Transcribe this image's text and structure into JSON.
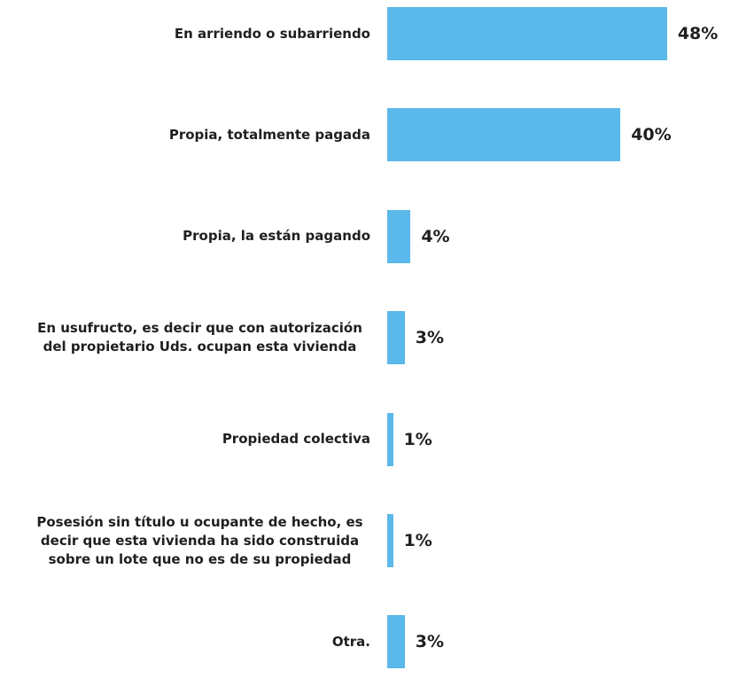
{
  "chart_data": {
    "type": "bar",
    "orientation": "horizontal",
    "categories": [
      "En arriendo o subarriendo",
      "Propia, totalmente pagada",
      "Propia, la están pagando",
      "En usufructo, es decir que con autorización del propietario Uds. ocupan esta vivienda",
      "Propiedad colectiva",
      "Posesión sin título u ocupante de hecho, es decir que esta vivienda ha sido construida sobre un lote que no es de su propiedad",
      "Otra."
    ],
    "values": [
      48,
      40,
      4,
      3,
      1,
      1,
      3
    ],
    "value_labels": [
      "48%",
      "40%",
      "4%",
      "3%",
      "1%",
      "1%",
      "3%"
    ],
    "color": "#5bb8ea"
  }
}
